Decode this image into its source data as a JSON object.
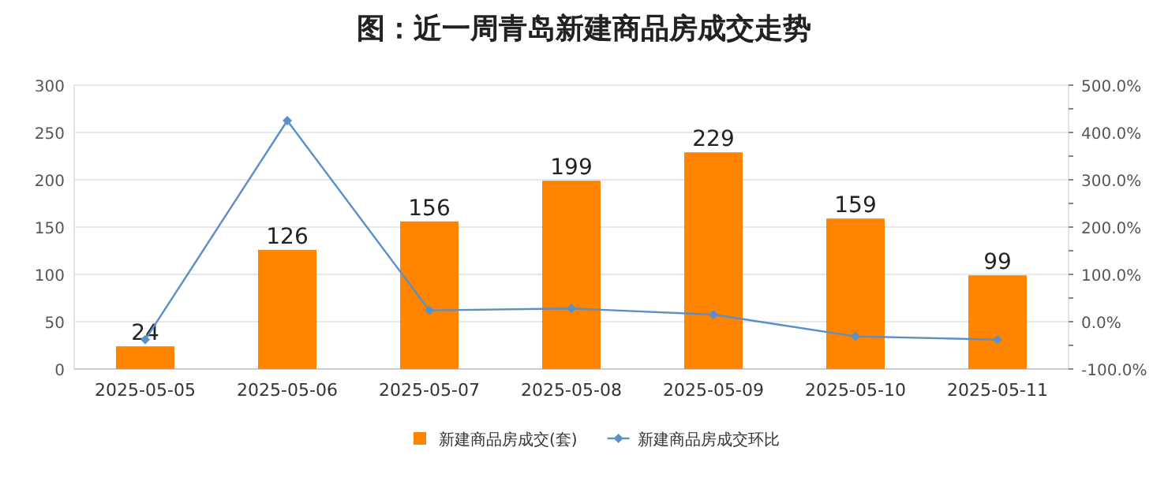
{
  "chart_data": {
    "type": "bar",
    "title": "图：近一周青岛新建商品房成交走势",
    "categories": [
      "2025-05-05",
      "2025-05-06",
      "2025-05-07",
      "2025-05-08",
      "2025-05-09",
      "2025-05-10",
      "2025-05-11"
    ],
    "series": [
      {
        "name": "新建商品房成交(套)",
        "color": "#ff8400",
        "values": [
          24,
          126,
          156,
          199,
          229,
          159,
          99
        ],
        "value_labels": [
          "24",
          "126",
          "156",
          "199",
          "229",
          "159",
          "99"
        ]
      },
      {
        "name": "新建商品房成交环比",
        "type": "line",
        "axis": "y2",
        "color": "#5b8fc7",
        "marker": "diamond",
        "values": [
          -38,
          425,
          24,
          28,
          15,
          -31,
          -38
        ]
      }
    ],
    "ylim": [
      0,
      300
    ],
    "yticks": [
      0,
      50,
      100,
      150,
      200,
      250,
      300
    ],
    "y2lim": [
      -100,
      500
    ],
    "y2ticks": [
      {
        "value": -100,
        "label": "-100.0%"
      },
      {
        "value": -50,
        "label": null
      },
      {
        "value": 0,
        "label": "0.0%"
      },
      {
        "value": 50,
        "label": null
      },
      {
        "value": 100,
        "label": "100.0%"
      },
      {
        "value": 150,
        "label": null
      },
      {
        "value": 200,
        "label": "200.0%"
      },
      {
        "value": 250,
        "label": null
      },
      {
        "value": 300,
        "label": "300.0%"
      },
      {
        "value": 350,
        "label": null
      },
      {
        "value": 400,
        "label": "400.0%"
      },
      {
        "value": 450,
        "label": null
      },
      {
        "value": 500,
        "label": "500.0%"
      }
    ],
    "grid": "y",
    "legend": "bottom"
  }
}
